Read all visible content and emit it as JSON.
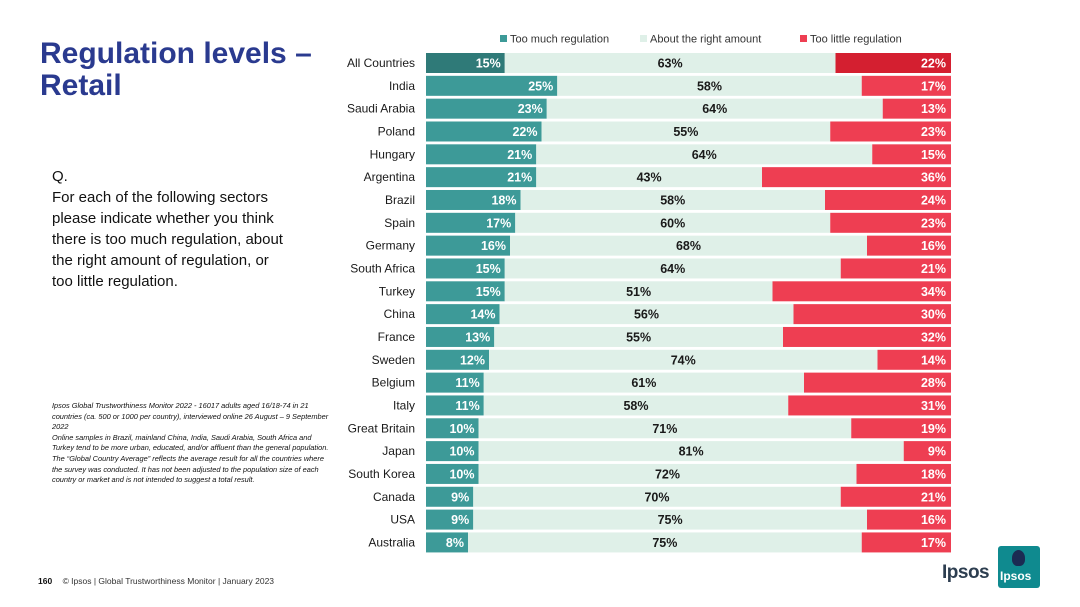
{
  "slide": {
    "title": "Regulation levels – Retail",
    "question_prefix": "Q.",
    "question": "For each of the following sectors please indicate whether you think there is too much regulation, about the right amount of regulation, or too little regulation.",
    "notes": [
      "Ipsos Global Trustworthiness Monitor 2022 - 16017 adults aged 16/18-74 in 21 countries (ca. 500 or 1000 per country), interviewed online 26 August – 9 September 2022",
      "Online samples in Brazil, mainland China, India, Saudi Arabia, South Africa and Turkey tend to be more urban, educated, and/or affluent than the general population.",
      "The “Global Country Average” reflects the average result for all the countries where the survey was conducted. It has not been adjusted to the population size of each country or market and is not intended to suggest a total result."
    ],
    "page_number": "160",
    "footer": "© Ipsos | Global Trustworthiness Monitor | January 2023",
    "logo_text": "Ipsos",
    "logo_box_text": "Ipsos"
  },
  "colors": {
    "too_much": "#3d9a98",
    "too_much_highlight": "#2f7a78",
    "right_amount": "#dff0e8",
    "too_little": "#ee3e52",
    "too_little_highlight": "#d41f30"
  },
  "chart_data": {
    "type": "bar",
    "orientation": "horizontal-stacked-100",
    "legend_position": "top",
    "categories": [
      "All Countries",
      "India",
      "Saudi Arabia",
      "Poland",
      "Hungary",
      "Argentina",
      "Brazil",
      "Spain",
      "Germany",
      "South Africa",
      "Turkey",
      "China",
      "France",
      "Sweden",
      "Belgium",
      "Italy",
      "Great Britain",
      "Japan",
      "South Korea",
      "Canada",
      "USA",
      "Australia"
    ],
    "series": [
      {
        "name": "Too much regulation",
        "values": [
          15,
          25,
          23,
          22,
          21,
          21,
          18,
          17,
          16,
          15,
          15,
          14,
          13,
          12,
          11,
          11,
          10,
          10,
          10,
          9,
          9,
          8
        ]
      },
      {
        "name": "About the right amount",
        "values": [
          63,
          58,
          64,
          55,
          64,
          43,
          58,
          60,
          68,
          64,
          51,
          56,
          55,
          74,
          61,
          58,
          71,
          81,
          72,
          70,
          75,
          75
        ]
      },
      {
        "name": "Too little regulation",
        "values": [
          22,
          17,
          13,
          23,
          15,
          36,
          24,
          23,
          16,
          21,
          34,
          30,
          32,
          14,
          28,
          31,
          19,
          9,
          18,
          21,
          16,
          17
        ]
      }
    ],
    "value_suffix": "%",
    "highlight_category": "All Countries"
  }
}
